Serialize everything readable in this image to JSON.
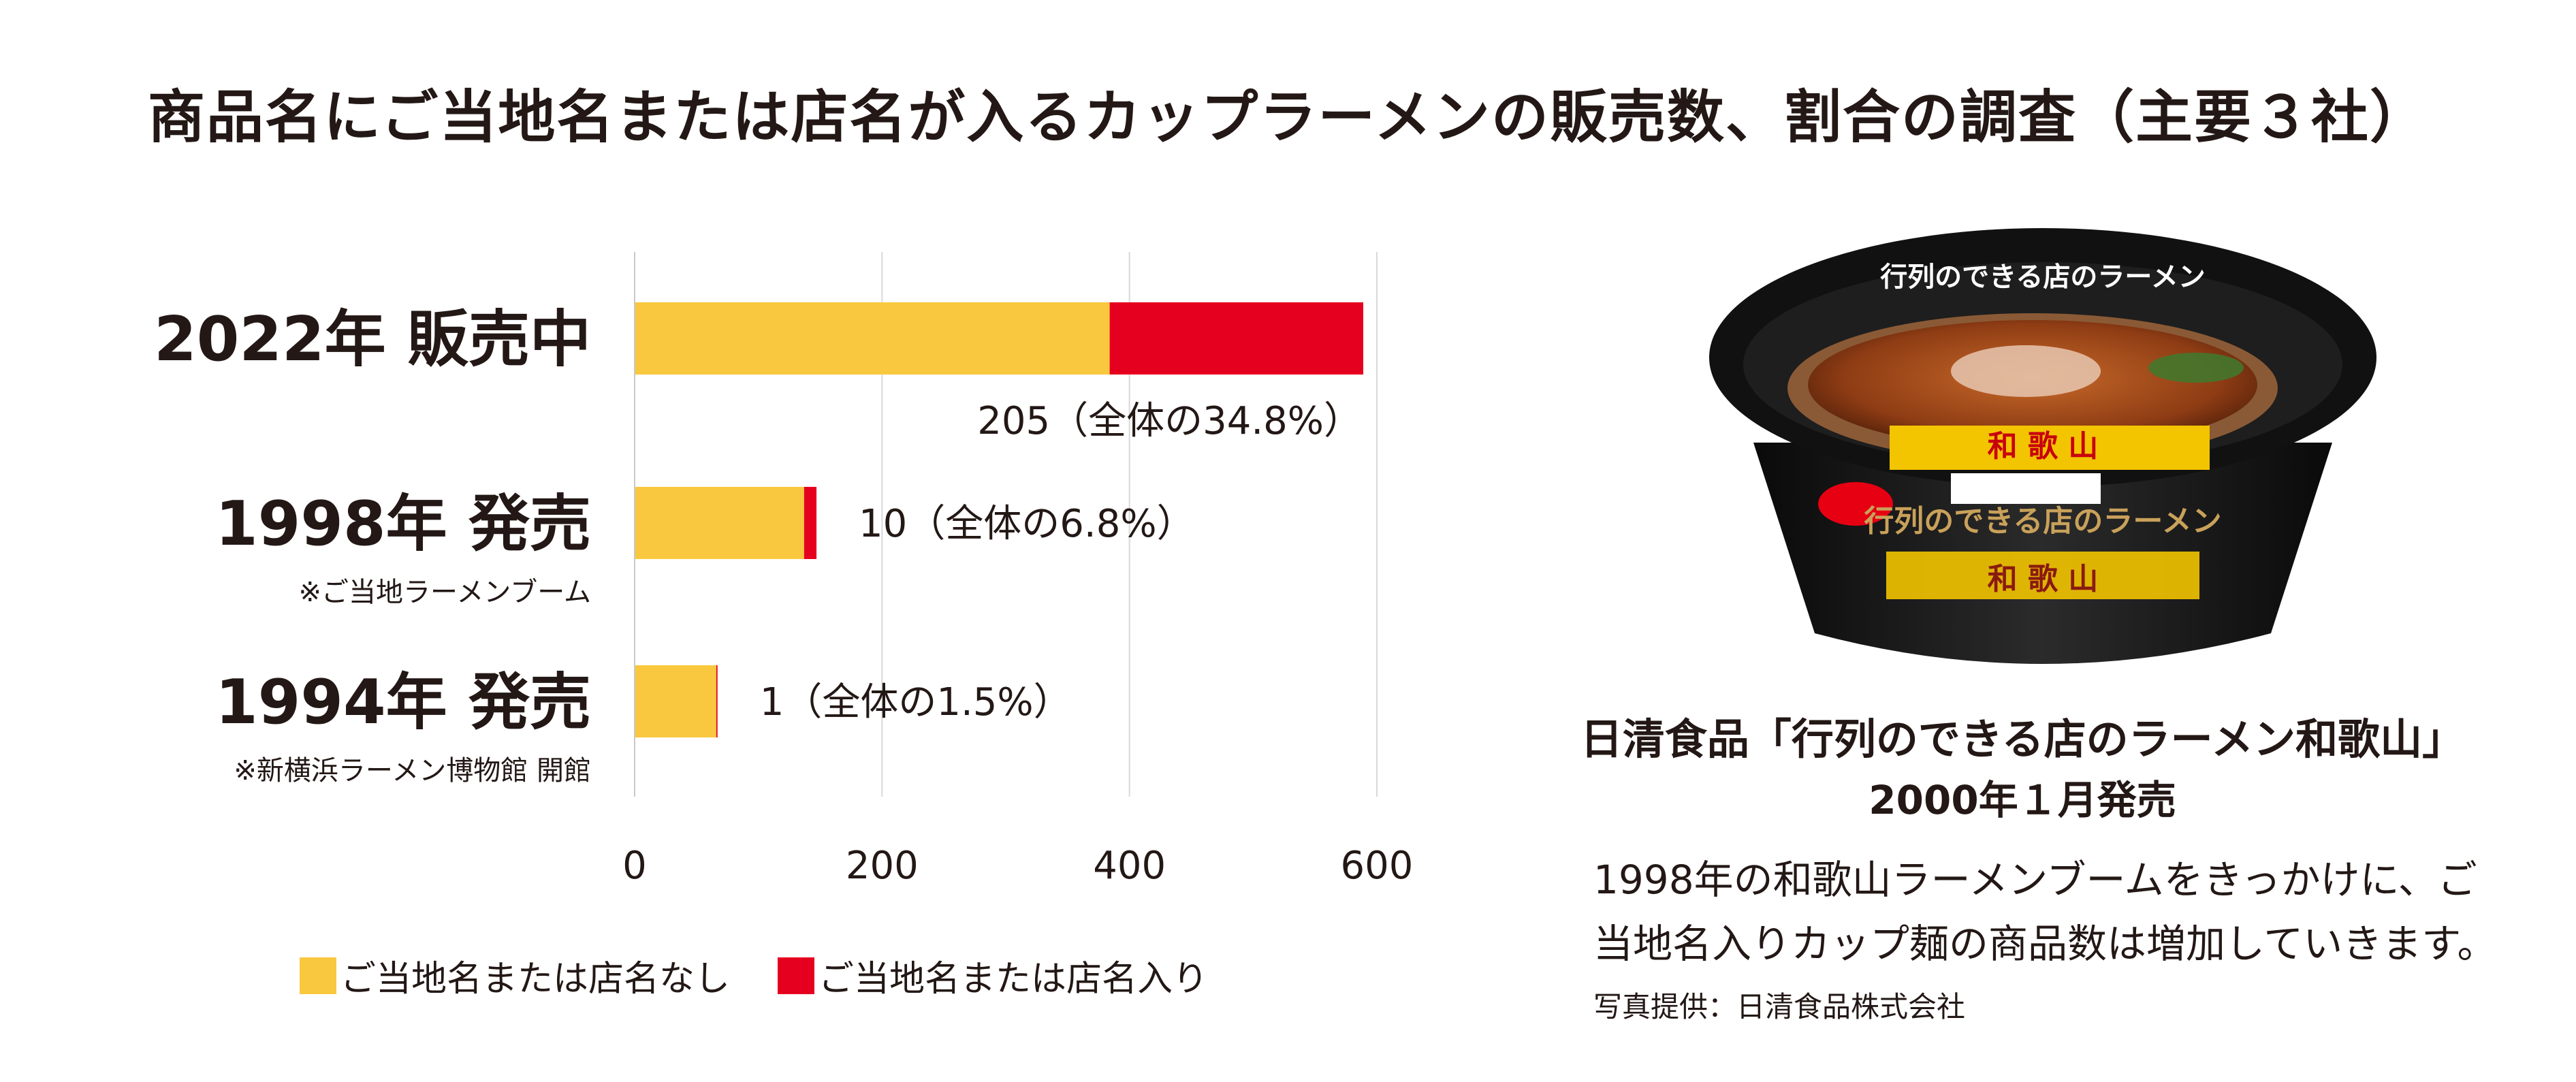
{
  "title": "商品名にご当地名または店名が入るカップラーメンの販売数、割合の調査（主要３社）",
  "colors": {
    "without": "#F9C83E",
    "with": "#E6001F",
    "grid": "#D9D9D9",
    "text": "#231815"
  },
  "chart_data": {
    "type": "bar",
    "orientation": "horizontal",
    "stacked": true,
    "categories": [
      "2022年 販売中",
      "1998年 発売",
      "1994年 発売"
    ],
    "category_notes": [
      "",
      "※ご当地ラーメンブーム",
      "※新横浜ラーメン博物館 開館"
    ],
    "series": [
      {
        "name": "ご当地名または店名なし",
        "values": [
          384,
          137,
          66
        ]
      },
      {
        "name": "ご当地名または店名入り",
        "values": [
          205,
          10,
          1
        ]
      }
    ],
    "data_labels": [
      "205（全体の34.8%）",
      "10（全体の6.8%）",
      "1（全体の1.5%）"
    ],
    "xticks": [
      0,
      200,
      400,
      600
    ],
    "xlim": [
      0,
      600
    ],
    "grid": true,
    "legend": "bottom"
  },
  "product": {
    "image_icon": "cup-ramen-photo",
    "caption_title": "日清食品「行列のできる店のラーメン和歌山」",
    "caption_date": "2000年１月発売",
    "caption_body": "1998年の和歌山ラーメンブームをきっかけに、ご当地名入りカップ麺の商品数は増加していきます。",
    "credit": "写真提供：日清食品株式会社"
  }
}
